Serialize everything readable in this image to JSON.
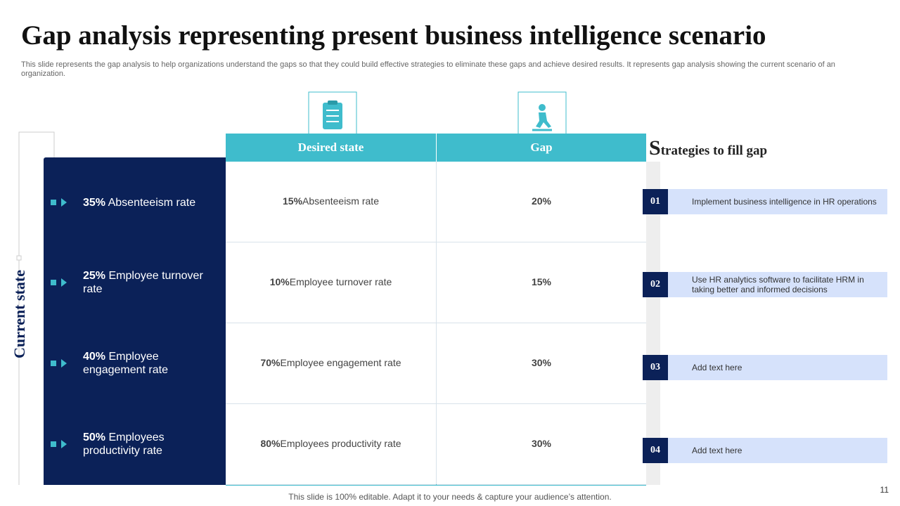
{
  "header": {
    "title": "Gap analysis representing present business intelligence scenario",
    "subtitle": "This slide represents the gap analysis to help organizations understand the gaps so that they could build effective strategies to eliminate these gaps and achieve desired results. It represents gap analysis showing the current scenario of an organization."
  },
  "current_state": {
    "label": "Current state",
    "items": [
      {
        "bold": "35%",
        "text": "Absenteeism rate"
      },
      {
        "bold": "25%",
        "text": "Employee turnover rate"
      },
      {
        "bold": "40%",
        "text": "Employee engagement rate"
      },
      {
        "bold": "50%",
        "text": "Employees productivity rate"
      }
    ]
  },
  "table": {
    "headers": [
      "Desired state",
      "Gap"
    ],
    "rows": [
      [
        {
          "bold": "15%",
          "text": "Absenteeism rate"
        },
        "20%"
      ],
      [
        {
          "bold": "10%",
          "text": "Employee turnover rate"
        },
        "15%"
      ],
      [
        {
          "bold": "70%",
          "text": "Employee engagement rate"
        },
        "30%"
      ],
      [
        {
          "bold": "80%",
          "text": "Employees productivity rate"
        },
        "30%"
      ]
    ]
  },
  "strategies": {
    "title": "Strategies to fill gap",
    "items": [
      {
        "number": "01",
        "text": "Implement business intelligence in HR operations"
      },
      {
        "number": "02",
        "text": "Use HR analytics software to facilitate HRM in taking better and informed decisions"
      },
      {
        "number": "03",
        "text": "Add text here"
      },
      {
        "number": "04",
        "text": "Add text here"
      }
    ]
  },
  "footer": {
    "note": "This slide is 100% editable. Adapt it to your needs & capture your audience’s attention.",
    "page": "11"
  }
}
